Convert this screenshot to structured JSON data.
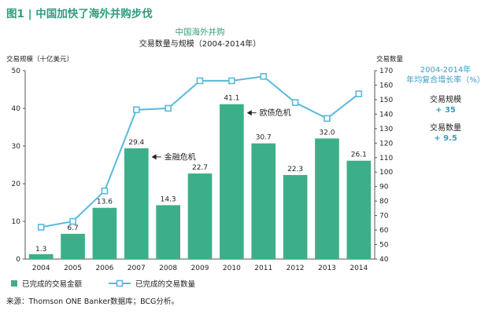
{
  "figure": {
    "title": "图1 | 中国加快了海外并购步伐",
    "source": "来源：Thomson ONE Banker数据库；BCG分析。"
  },
  "colors": {
    "bar": "#3caf8a",
    "line": "#5ab9dc",
    "marker_fill": "#ffffff",
    "title": "#2e9e7e",
    "accent": "#3a9ec4"
  },
  "chart_data": {
    "type": "bar",
    "title": "中国海外并购",
    "subtitle": "交易数量与规模（2004-2014年）",
    "categories": [
      "2004",
      "2005",
      "2006",
      "2007",
      "2008",
      "2009",
      "2010",
      "2011",
      "2012",
      "2013",
      "2014"
    ],
    "series": [
      {
        "name": "已完成的交易金额",
        "type": "bar",
        "axis": "left",
        "values": [
          1.3,
          6.7,
          13.6,
          29.4,
          14.3,
          22.7,
          41.1,
          30.7,
          22.3,
          32.0,
          26.1
        ],
        "labels": [
          "1.3",
          "6.7",
          "13.6",
          "29.4",
          "14.3",
          "22.7",
          "41.1",
          "30.7",
          "22.3",
          "32.0",
          "26.1"
        ]
      },
      {
        "name": "已完成的交易数量",
        "type": "line",
        "axis": "right",
        "values": [
          62,
          66,
          87,
          143,
          144,
          163,
          163,
          166,
          148,
          137,
          154
        ]
      }
    ],
    "y_left": {
      "label": "交易规模（十亿美元）",
      "min": 0,
      "max": 50,
      "ticks": [
        0,
        10,
        20,
        30,
        40,
        50
      ]
    },
    "y_right": {
      "label": "交易数量",
      "min": 40,
      "max": 170,
      "ticks": [
        40,
        50,
        60,
        70,
        80,
        90,
        100,
        110,
        120,
        130,
        140,
        150,
        160,
        170
      ]
    },
    "annotations": [
      {
        "text": "金融危机",
        "category": "2007"
      },
      {
        "text": "欧债危机",
        "category": "2010"
      }
    ],
    "cagr": {
      "title": "2004-2014年\n年均复合增长率（%）",
      "items": [
        {
          "label": "交易规模",
          "value": "+ 35"
        },
        {
          "label": "交易数量",
          "value": "+ 9.5"
        }
      ]
    },
    "legend": "bottom-left",
    "grid": false
  }
}
